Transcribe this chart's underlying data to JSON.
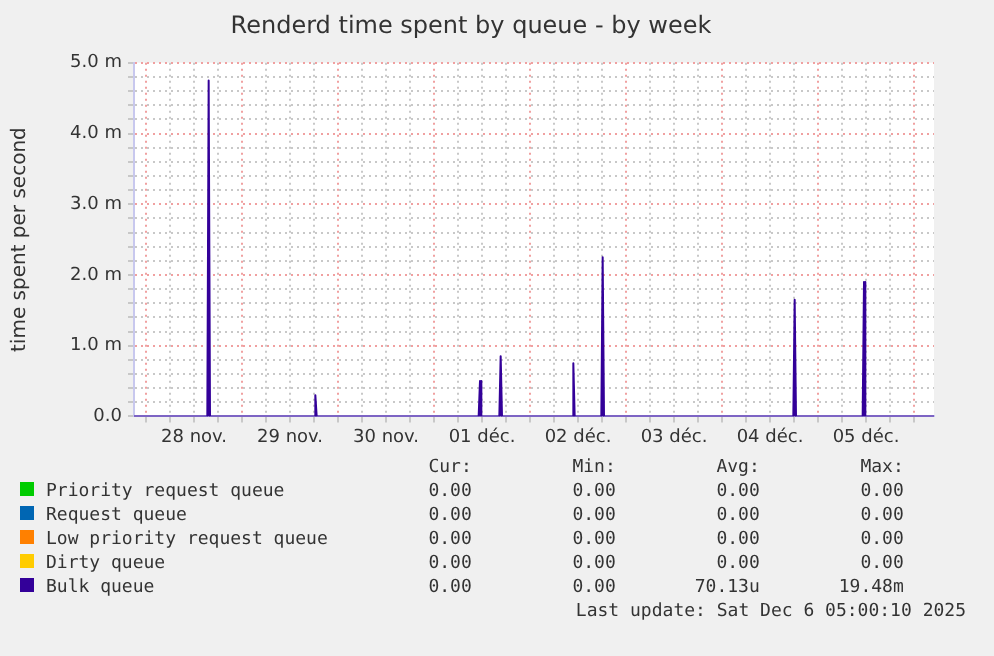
{
  "chart_data": {
    "type": "area",
    "title": "Renderd time spent by queue - by week",
    "ylabel": "time spent per second",
    "xlim": [
      "2025-11-27T21:00",
      "2025-12-06T05:00"
    ],
    "xticks": [
      {
        "value": "2025-11-28T00:00",
        "label": null
      },
      {
        "value": "2025-11-28T06:00",
        "label": null
      },
      {
        "value": "2025-11-28T12:00",
        "label": "28 nov."
      },
      {
        "value": "2025-11-28T18:00",
        "label": null
      },
      {
        "value": "2025-11-29T00:00",
        "label": null
      },
      {
        "value": "2025-11-29T06:00",
        "label": null
      },
      {
        "value": "2025-11-29T12:00",
        "label": "29 nov."
      },
      {
        "value": "2025-11-29T18:00",
        "label": null
      },
      {
        "value": "2025-11-30T00:00",
        "label": null
      },
      {
        "value": "2025-11-30T06:00",
        "label": null
      },
      {
        "value": "2025-11-30T12:00",
        "label": "30 nov."
      },
      {
        "value": "2025-11-30T18:00",
        "label": null
      },
      {
        "value": "2025-12-01T00:00",
        "label": null
      },
      {
        "value": "2025-12-01T06:00",
        "label": null
      },
      {
        "value": "2025-12-01T12:00",
        "label": "01 déc."
      },
      {
        "value": "2025-12-01T18:00",
        "label": null
      },
      {
        "value": "2025-12-02T00:00",
        "label": null
      },
      {
        "value": "2025-12-02T06:00",
        "label": null
      },
      {
        "value": "2025-12-02T12:00",
        "label": "02 déc."
      },
      {
        "value": "2025-12-02T18:00",
        "label": null
      },
      {
        "value": "2025-12-03T00:00",
        "label": null
      },
      {
        "value": "2025-12-03T06:00",
        "label": null
      },
      {
        "value": "2025-12-03T12:00",
        "label": "03 déc."
      },
      {
        "value": "2025-12-03T18:00",
        "label": null
      },
      {
        "value": "2025-12-04T00:00",
        "label": null
      },
      {
        "value": "2025-12-04T06:00",
        "label": null
      },
      {
        "value": "2025-12-04T12:00",
        "label": "04 déc."
      },
      {
        "value": "2025-12-04T18:00",
        "label": null
      },
      {
        "value": "2025-12-05T00:00",
        "label": null
      },
      {
        "value": "2025-12-05T06:00",
        "label": null
      },
      {
        "value": "2025-12-05T12:00",
        "label": "05 déc."
      },
      {
        "value": "2025-12-05T18:00",
        "label": null
      },
      {
        "value": "2025-12-06T00:00",
        "label": null
      }
    ],
    "ylim": [
      0,
      5
    ],
    "yticks": [
      {
        "value": 0,
        "label": "0.0"
      },
      {
        "value": 0.2,
        "label": null
      },
      {
        "value": 0.4,
        "label": null
      },
      {
        "value": 0.6,
        "label": null
      },
      {
        "value": 0.8,
        "label": null
      },
      {
        "value": 1,
        "label": "1.0 m"
      },
      {
        "value": 1.2,
        "label": null
      },
      {
        "value": 1.4,
        "label": null
      },
      {
        "value": 1.6,
        "label": null
      },
      {
        "value": 1.8,
        "label": null
      },
      {
        "value": 2,
        "label": "2.0 m"
      },
      {
        "value": 2.2,
        "label": null
      },
      {
        "value": 2.4,
        "label": null
      },
      {
        "value": 2.6,
        "label": null
      },
      {
        "value": 2.8,
        "label": null
      },
      {
        "value": 3,
        "label": "3.0 m"
      },
      {
        "value": 3.2,
        "label": null
      },
      {
        "value": 3.4,
        "label": null
      },
      {
        "value": 3.6,
        "label": null
      },
      {
        "value": 3.8,
        "label": null
      },
      {
        "value": 4,
        "label": "4.0 m"
      },
      {
        "value": 4.2,
        "label": null
      },
      {
        "value": 4.4,
        "label": null
      },
      {
        "value": 4.6,
        "label": null
      },
      {
        "value": 4.8,
        "label": null
      },
      {
        "value": 5,
        "label": "5.0 m"
      }
    ],
    "grid": true,
    "legend": "bottom",
    "series": [
      {
        "name": "Priority request queue",
        "color": "#00cc00"
      },
      {
        "name": "Request queue",
        "color": "#0066b3"
      },
      {
        "name": "Low priority request queue",
        "color": "#ff8000"
      },
      {
        "name": "Dirty queue",
        "color": "#ffcc00"
      },
      {
        "name": "Bulk queue",
        "color": "#330099",
        "x": [
          "2025-11-27T21:00",
          "2025-11-28T15:20",
          "2025-11-28T15:40",
          "2025-11-28T16:00",
          "2025-11-29T18:00",
          "2025-11-29T18:20",
          "2025-11-29T18:40",
          "2025-12-01T11:10",
          "2025-12-01T11:30",
          "2025-12-01T11:50",
          "2025-12-01T16:20",
          "2025-12-01T16:40",
          "2025-12-01T17:00",
          "2025-12-02T10:30",
          "2025-12-02T10:50",
          "2025-12-02T11:10",
          "2025-12-02T17:50",
          "2025-12-02T18:10",
          "2025-12-02T18:30",
          "2025-12-04T17:50",
          "2025-12-04T18:10",
          "2025-12-04T18:30",
          "2025-12-05T11:10",
          "2025-12-05T11:30",
          "2025-12-05T11:50",
          "2025-12-06T05:00"
        ],
        "values": [
          0,
          0,
          4.75,
          0,
          0,
          0.3,
          0,
          0,
          0.5,
          0,
          0,
          0.85,
          0,
          0,
          0.75,
          0,
          0,
          2.25,
          0,
          0,
          1.65,
          0,
          0,
          1.9,
          0,
          0
        ]
      }
    ],
    "annotations": [
      "Cur:",
      "Min:",
      "Avg:",
      "Max:",
      "0.00",
      "0.00",
      "0.00",
      "0.00",
      "0.00",
      "0.00",
      "0.00",
      "0.00",
      "0.00",
      "0.00",
      "0.00",
      "0.00",
      "0.00",
      "0.00",
      "0.00",
      "0.00",
      "0.00",
      "0.00",
      "70.13u",
      "19.48m",
      "Last update:  Sat Dec  6 05:00:10 2025"
    ]
  }
}
